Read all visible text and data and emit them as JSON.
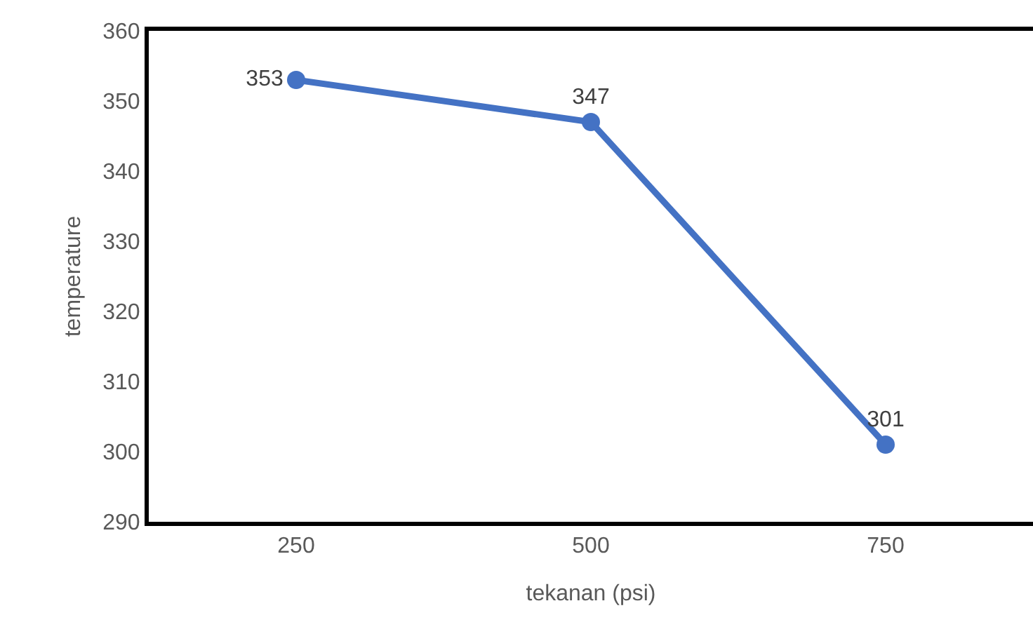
{
  "chart_data": {
    "type": "line",
    "xlabel": "tekanan (psi)",
    "ylabel": "temperature",
    "categories": [
      "250",
      "500",
      "750"
    ],
    "series": [
      {
        "color": "#4472c4",
        "values": [
          353,
          347,
          301
        ]
      }
    ],
    "ylim": [
      290,
      360
    ],
    "yticks": [
      290,
      300,
      310,
      320,
      330,
      340,
      350,
      360
    ],
    "data_labels": true,
    "grid": false,
    "legend": false,
    "marker": "circle",
    "line_style": "solid"
  }
}
